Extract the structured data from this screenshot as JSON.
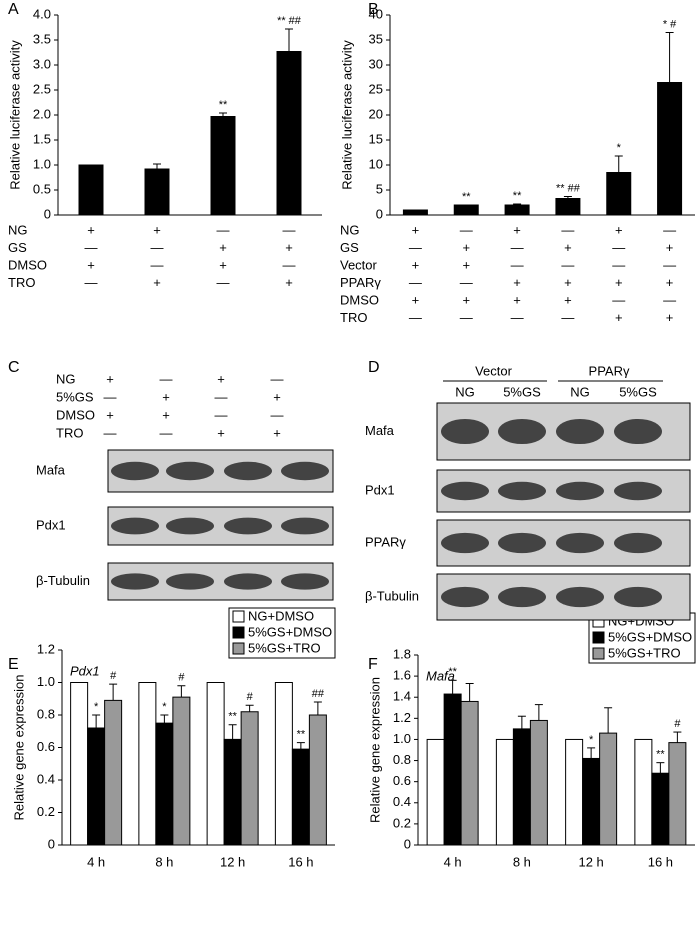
{
  "chart_data": [
    {
      "type": "bar",
      "panel_label": "A",
      "y_label": "Relative luciferase activity",
      "color": "#000000",
      "values": [
        1.0,
        0.92,
        1.97,
        3.27
      ],
      "errors": [
        null,
        0.1,
        0.07,
        0.45
      ],
      "annotations": [
        null,
        null,
        "**",
        "** ##"
      ],
      "ylim": [
        0,
        4
      ],
      "yticks": [
        0,
        0.5,
        {
          "value": 1,
          "label": "1.0"
        },
        1.5,
        {
          "value": 2,
          "label": "2.0"
        },
        2.5,
        {
          "value": 3,
          "label": "3.0"
        },
        3.5,
        {
          "value": 4,
          "label": "4.0"
        }
      ],
      "conditions": [
        {
          "label": "NG",
          "marks": [
            "+",
            "+",
            "—",
            "—"
          ]
        },
        {
          "label": "GS",
          "marks": [
            "—",
            "—",
            "+",
            "+"
          ]
        },
        {
          "label": "DMSO",
          "marks": [
            "+",
            "—",
            "+",
            "—"
          ]
        },
        {
          "label": "TRO",
          "marks": [
            "—",
            "+",
            "—",
            "+"
          ]
        }
      ]
    },
    {
      "type": "bar",
      "panel_label": "B",
      "y_label": "Relative luciferase activity",
      "color": "#000000",
      "values": [
        1,
        2,
        2,
        3.3,
        8.5,
        26.5
      ],
      "errors": [
        null,
        null,
        0.2,
        0.4,
        3.3,
        10
      ],
      "annotations": [
        null,
        "**",
        "**",
        "** ##",
        "*",
        "* #"
      ],
      "ylim": [
        0,
        40
      ],
      "yticks": [
        0,
        5,
        10,
        15,
        20,
        25,
        30,
        35,
        40
      ],
      "conditions": [
        {
          "label": "NG",
          "marks": [
            "+",
            "—",
            "+",
            "—",
            "+",
            "—"
          ]
        },
        {
          "label": "GS",
          "marks": [
            "—",
            "+",
            "—",
            "+",
            "—",
            "+"
          ]
        },
        {
          "label": "Vector",
          "marks": [
            "+",
            "+",
            "—",
            "—",
            "—",
            "—"
          ]
        },
        {
          "label": "PPARγ",
          "marks": [
            "—",
            "—",
            "+",
            "+",
            "+",
            "+"
          ]
        },
        {
          "label": "DMSO",
          "marks": [
            "+",
            "+",
            "+",
            "+",
            "—",
            "—"
          ]
        },
        {
          "label": "TRO",
          "marks": [
            "—",
            "—",
            "—",
            "—",
            "+",
            "+"
          ]
        }
      ]
    },
    {
      "type": "bar",
      "panel_label": "E",
      "title": "Pdx1",
      "y_label": "Relative gene expression",
      "legend": "upper right",
      "categories": [
        "4 h",
        "8 h",
        "12 h",
        "16 h"
      ],
      "ylim": [
        0,
        1.2
      ],
      "yticks": [
        0,
        0.2,
        0.4,
        0.6,
        0.8,
        {
          "value": 1,
          "label": "1.0"
        },
        1.2
      ],
      "series": [
        {
          "name": "NG+DMSO",
          "color": "#ffffff",
          "values": [
            1,
            1,
            1,
            1
          ],
          "errors": [
            null,
            null,
            null,
            null
          ],
          "annotations": [
            null,
            null,
            null,
            null
          ]
        },
        {
          "name": "5%GS+DMSO",
          "color": "#000000",
          "values": [
            0.72,
            0.75,
            0.65,
            0.59
          ],
          "errors": [
            0.08,
            0.05,
            0.09,
            0.04
          ],
          "annotations": [
            "*",
            "*",
            "**",
            "**"
          ]
        },
        {
          "name": "5%GS+TRO",
          "color": "#999999",
          "values": [
            0.89,
            0.91,
            0.82,
            0.8
          ],
          "errors": [
            0.1,
            0.07,
            0.04,
            0.08
          ],
          "annotations": [
            "#",
            "#",
            "#",
            "##"
          ]
        }
      ]
    },
    {
      "type": "bar",
      "panel_label": "F",
      "title": "Mafa",
      "y_label": "Relative gene expression",
      "legend": "upper right",
      "categories": [
        "4 h",
        "8 h",
        "12 h",
        "16 h"
      ],
      "ylim": [
        0,
        1.8
      ],
      "yticks": [
        0,
        0.2,
        0.4,
        0.6,
        0.8,
        {
          "value": 1,
          "label": "1.0"
        },
        1.2,
        1.4,
        1.6,
        1.8
      ],
      "series": [
        {
          "name": "NG+DMSO",
          "color": "#ffffff",
          "values": [
            1,
            1,
            1,
            1
          ],
          "errors": [
            null,
            null,
            null,
            null
          ],
          "annotations": [
            null,
            null,
            null,
            null
          ]
        },
        {
          "name": "5%GS+DMSO",
          "color": "#000000",
          "values": [
            1.43,
            1.1,
            0.82,
            0.68
          ],
          "errors": [
            0.13,
            0.12,
            0.1,
            0.1
          ],
          "annotations": [
            "**",
            null,
            "*",
            "**"
          ]
        },
        {
          "name": "5%GS+TRO",
          "color": "#999999",
          "values": [
            1.36,
            1.18,
            1.06,
            0.97
          ],
          "errors": [
            0.17,
            0.15,
            0.24,
            0.1
          ],
          "annotations": [
            null,
            null,
            null,
            "#"
          ]
        }
      ]
    }
  ],
  "blots": [
    {
      "panel_label": "C",
      "conditions": [
        {
          "label": "NG",
          "marks": [
            "+",
            "—",
            "+",
            "—"
          ]
        },
        {
          "label": "5%GS",
          "marks": [
            "—",
            "+",
            "—",
            "+"
          ]
        },
        {
          "label": "DMSO",
          "marks": [
            "+",
            "+",
            "—",
            "—"
          ]
        },
        {
          "label": "TRO",
          "marks": [
            "—",
            "—",
            "+",
            "+"
          ]
        }
      ],
      "rows": [
        "Mafa",
        "Pdx1",
        "β-Tubulin"
      ]
    },
    {
      "panel_label": "D",
      "groups": [
        {
          "label": "Vector",
          "lanes": [
            "NG",
            "5%GS"
          ]
        },
        {
          "label": "PPARγ",
          "lanes": [
            "NG",
            "5%GS"
          ]
        }
      ],
      "rows": [
        "Mafa",
        "Pdx1",
        "PPARγ",
        "β-Tubulin"
      ]
    }
  ]
}
